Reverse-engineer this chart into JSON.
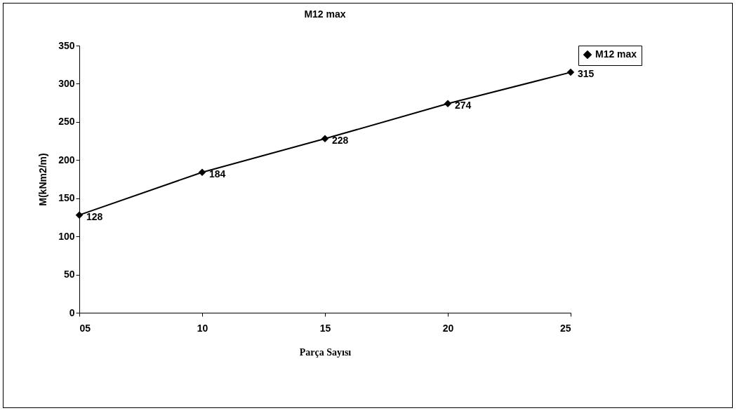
{
  "chart_data": {
    "type": "line",
    "title": "M12 max",
    "xlabel": "Parça Sayısı",
    "ylabel": "M(kNm2/m)",
    "categories": [
      "05",
      "10",
      "15",
      "20",
      "25"
    ],
    "series": [
      {
        "name": "M12 max",
        "color": "#000000",
        "values": [
          128,
          184,
          228,
          274,
          315
        ]
      }
    ],
    "ylim": [
      0,
      350
    ],
    "yticks": [
      0,
      50,
      100,
      150,
      200,
      250,
      300,
      350
    ],
    "data_labels": true,
    "legend": "right",
    "marker": "diamond",
    "grid": false
  }
}
